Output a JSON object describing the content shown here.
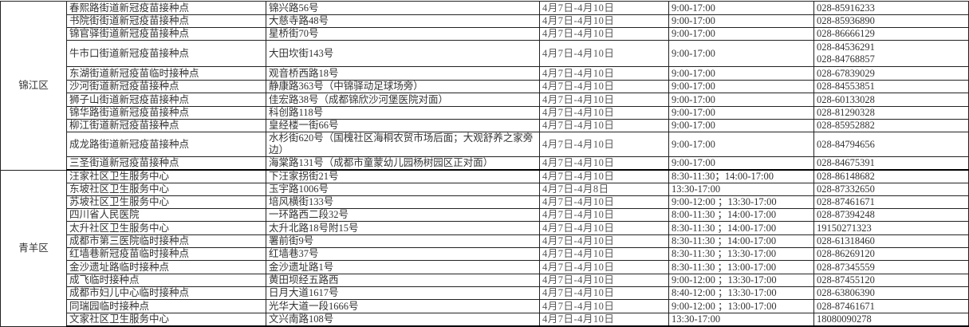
{
  "groups": [
    {
      "district": "锦江区",
      "rows": [
        {
          "name": "春熙路街道新冠疫苗接种点",
          "address": "锦兴路56号",
          "date": "4月7日-4月10日",
          "time": "9:00-17:00",
          "phone": [
            "028-85916233"
          ]
        },
        {
          "name": "书院街街道新冠疫苗接种点",
          "address": "大慈寺路48号",
          "date": "4月7日-4月10日",
          "time": "9:00-17:00",
          "phone": [
            "028-85936890"
          ]
        },
        {
          "name": "锦官驿街道新冠疫苗接种点",
          "address": "星桥街70号",
          "date": "4月7日-4月10日",
          "time": "9:00-17:00",
          "phone": [
            "028-86666129"
          ]
        },
        {
          "name": "牛市口街道新冠疫苗接种点",
          "address": "大田坎街143号",
          "date": "4月7日-4月10日",
          "time": "9:00-17:00",
          "phone": [
            "028-84536291",
            "028-84768857"
          ]
        },
        {
          "name": "东湖街道新冠疫苗临时接种点",
          "address": "观音桥西路18号",
          "date": "4月7日-4月10日",
          "time": "9:00-17:00",
          "phone": [
            "028-67839029"
          ]
        },
        {
          "name": "沙河街道新冠疫苗接种点",
          "address": "静康路363号（中锦驿动足球场旁）",
          "date": "4月7日-4月10日",
          "time": "9:00-17:00",
          "phone": [
            "028-84553851"
          ]
        },
        {
          "name": "狮子山街道新冠疫苗接种点",
          "address": "佳宏路38号（成都锦欣沙河堡医院对面）",
          "date": "4月7日-4月10日",
          "time": "9:00-17:00",
          "phone": [
            "028-60133028"
          ]
        },
        {
          "name": "锦华路街道新冠疫苗接种点",
          "address": "科创路118号",
          "date": "4月7日-4月10日",
          "time": "9:00-17:00",
          "phone": [
            "028-81290328"
          ]
        },
        {
          "name": "柳江街道新冠疫苗接种点",
          "address": "皇经楼一街66号",
          "date": "4月7日-4月10日",
          "time": "9:00-17:00",
          "phone": [
            "028-85952882"
          ]
        },
        {
          "name": "成龙路街道新冠疫苗接种点",
          "address": "水杉街620号（国槐社区海桐农贸市场后面；大观舒养之家旁边）",
          "date": "4月7日-4月10日",
          "time": "9:00-17:00",
          "phone": [
            "028-84794656"
          ]
        },
        {
          "name": "三圣街道新冠疫苗接种点",
          "address": "海棠路131号（成都市童蒙幼儿园杨树园区正对面）",
          "date": "4月7日-4月10日",
          "time": "9:00-17:00",
          "phone": [
            "028-84675391"
          ]
        }
      ]
    },
    {
      "district": "青羊区",
      "rows": [
        {
          "name": "汪家社区卫生服务中心",
          "address": "下汪家拐街21号",
          "date": "4月7日-4月10日",
          "time": "8:30-11:30；14:00-17:00",
          "phone": [
            "028-86148682"
          ]
        },
        {
          "name": "东坡社区卫生服务中心",
          "address": "玉宇路1006号",
          "date": "4月7日-4月8日",
          "time": "13:30-17:00",
          "phone": [
            "028-87332650"
          ]
        },
        {
          "name": "苏坡社区卫生服务中心",
          "address": "培风横街133号",
          "date": "4月7日-4月10日",
          "time": "9:00-12:00 ；13:30-17:00",
          "phone": [
            "028-87461671"
          ]
        },
        {
          "name": "四川省人民医院",
          "address": "一环路西二段32号",
          "date": "4月7日-4月10日",
          "time": "8:00-11:30 ；14:00-17:00",
          "phone": [
            "028-87394248"
          ]
        },
        {
          "name": "太升社区卫生服务中心",
          "address": "太升北路18号附15号",
          "date": "4月7日-4月10日",
          "time": "8:30-11:30 ；14:00-17:00",
          "phone": [
            "19150271323"
          ]
        },
        {
          "name": "成都市第三医院临时接种点",
          "address": "署前街9号",
          "date": "4月7日-4月10日",
          "time": "8:30-11:30 ；14:00-17:00",
          "phone": [
            "028-61318460"
          ]
        },
        {
          "name": "红墙巷新冠疫苗临时接种点",
          "address": "红墙巷37号",
          "date": "4月7日-4月10日",
          "time": "8:30-11:30 ；13:30-17:00",
          "phone": [
            "028-86269120"
          ]
        },
        {
          "name": "金沙遗址路临时接种点",
          "address": "金沙遗址路1号",
          "date": "4月7日-4月10日",
          "time": "8:30-11:30 ；13:00-17:00",
          "phone": [
            "028-87345559"
          ]
        },
        {
          "name": "成飞临时接种点",
          "address": "黄田坝经五路西",
          "date": "4月7日-4月10日",
          "time": "9:00-12:00 ；13:30-17:00",
          "phone": [
            "028-87455120"
          ]
        },
        {
          "name": "成都市妇儿中心临时接种点",
          "address": "日月大道1617号",
          "date": "4月7日-4月10日",
          "time": "8:40-12:00 ；13:30-17:00",
          "phone": [
            "028-63806390"
          ]
        },
        {
          "name": "同瑞园临时接种点",
          "address": "光华大道一段1666号",
          "date": "4月7日-4月10日",
          "time": "9:00-12:00 ；13:00-17:00",
          "phone": [
            "028-87461671"
          ]
        },
        {
          "name": "文家社区卫生服务中心",
          "address": "文兴南路108号",
          "date": "4月7日-4月10日",
          "time": "13:30-17:00",
          "phone": [
            "18080090278"
          ]
        }
      ]
    }
  ]
}
